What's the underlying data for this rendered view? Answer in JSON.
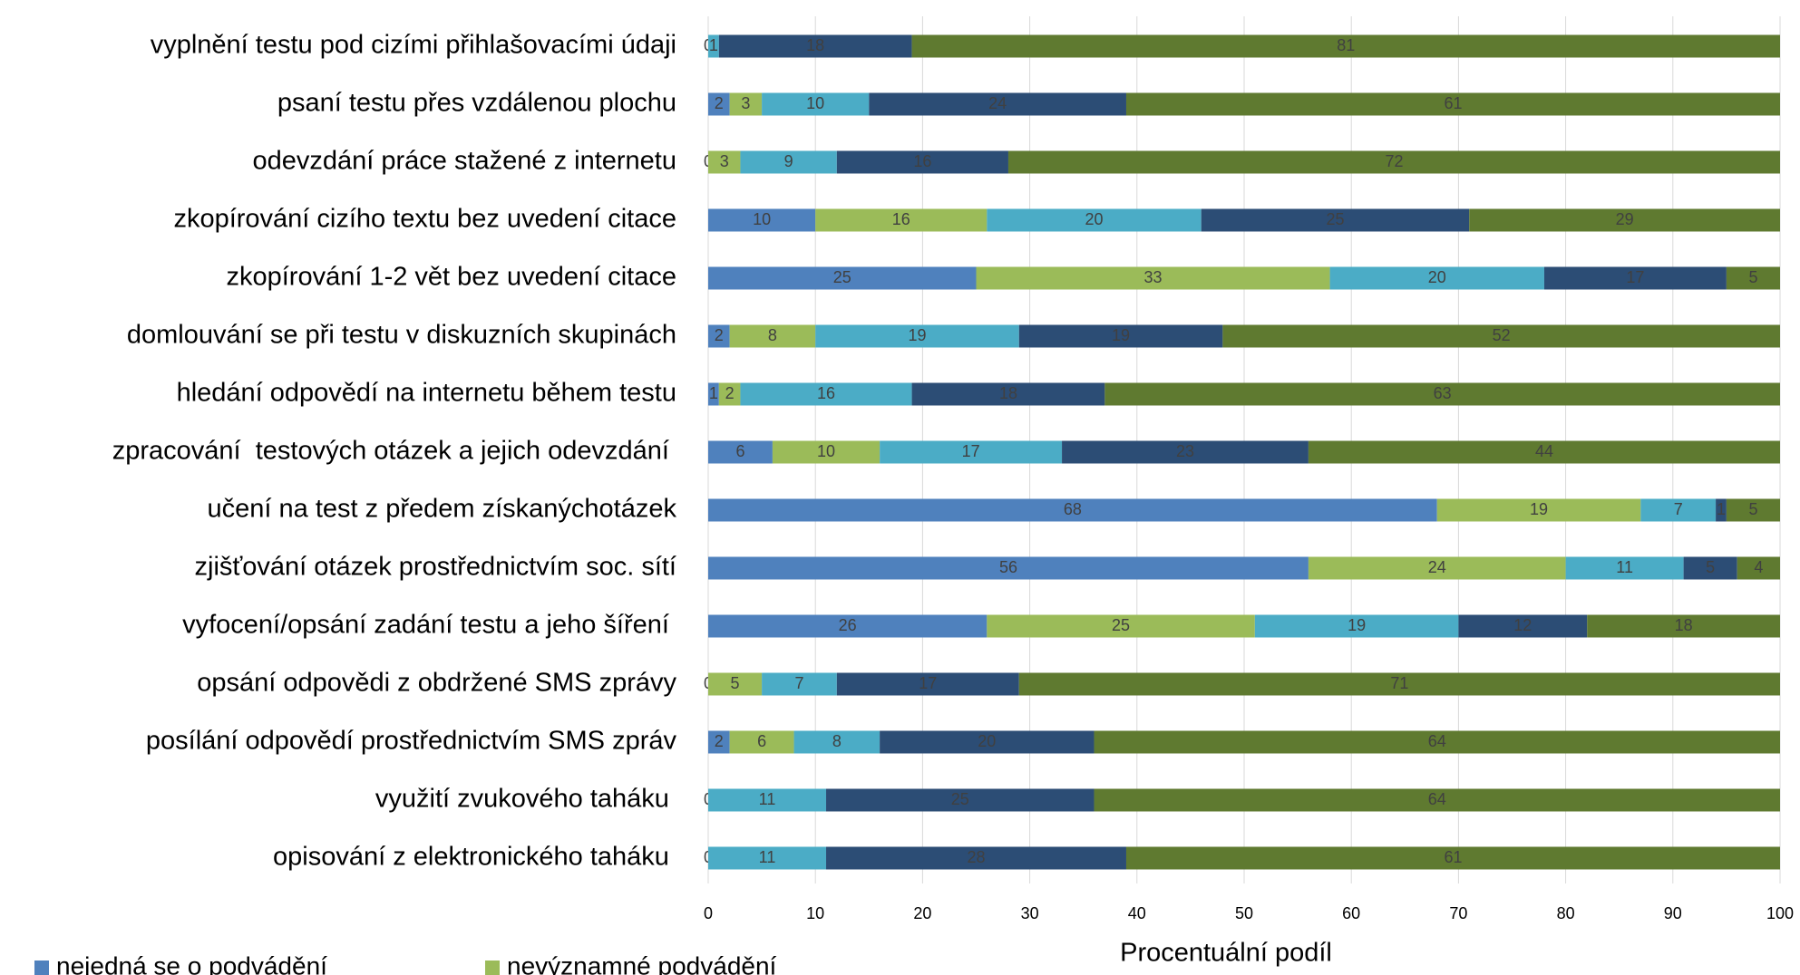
{
  "chart_data": {
    "type": "stacked_bar_horizontal",
    "categories": [
      "vyplnění testu pod cizími přihlašovacími údaji",
      "psaní testu přes vzdálenou plochu",
      "odevzdání práce stažené z internetu",
      "zkopírování cizího textu bez uvedení citace",
      "zkopírování 1-2 vět bez uvedení citace",
      "domlouvání se při testu v diskuzních skupinách",
      "hledání odpovědí na internetu během testu",
      "zpracování  testových otázek a jejich odevzdání ",
      "učení na test z předem získanýchotázek",
      "zjišťování otázek prostřednictvím soc. sítí",
      "vyfocení/opsání zadání testu a jeho šíření ",
      "opsání odpovědi z obdržené SMS zprávy",
      "posílání odpovědí prostřednictvím SMS zpráv",
      "využití zvukového taháku ",
      "opisování z elektronického taháku "
    ],
    "series": [
      {
        "name": "nejedná se o podvádění",
        "color": "#4f81bd",
        "values": [
          0,
          2,
          0,
          10,
          25,
          2,
          1,
          6,
          68,
          56,
          26,
          0,
          2,
          0,
          0
        ]
      },
      {
        "name": "nevýznamné podvádění",
        "color": "#9bbb59",
        "values": [
          null,
          3,
          3,
          16,
          33,
          8,
          2,
          10,
          19,
          24,
          25,
          5,
          6,
          null,
          null
        ]
      },
      {
        "color": "#4bacc6",
        "values": [
          1,
          10,
          9,
          20,
          20,
          19,
          16,
          17,
          7,
          11,
          19,
          7,
          8,
          11,
          11
        ]
      },
      {
        "color": "#2c4d75",
        "values": [
          18,
          24,
          16,
          25,
          17,
          19,
          18,
          23,
          1,
          5,
          12,
          17,
          20,
          25,
          28
        ]
      },
      {
        "color": "#5f7a30",
        "values": [
          81,
          61,
          72,
          29,
          5,
          52,
          63,
          44,
          5,
          4,
          18,
          71,
          64,
          64,
          61
        ]
      }
    ],
    "xlabel": "Procentuální podíl",
    "xlim": [
      0,
      100
    ],
    "xticks": [
      0,
      10,
      20,
      30,
      40,
      50,
      60,
      70,
      80,
      90,
      100
    ],
    "grid": true
  }
}
